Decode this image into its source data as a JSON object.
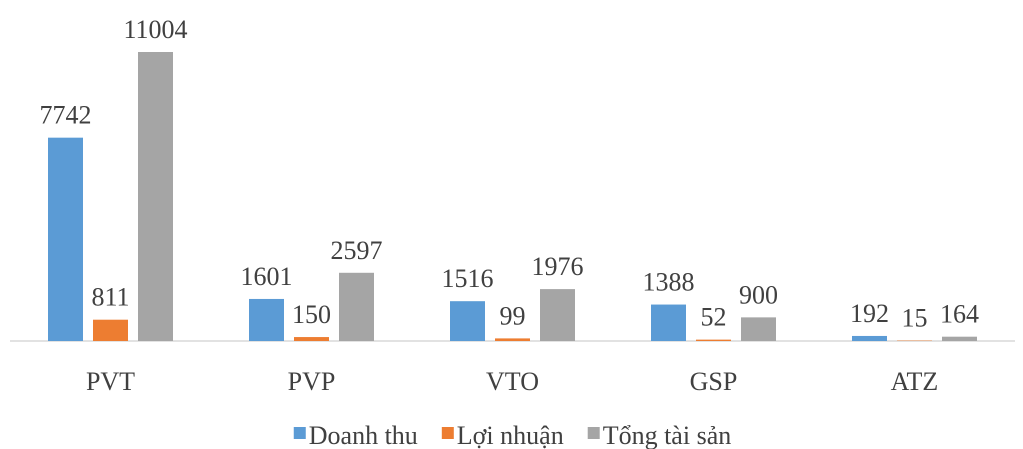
{
  "chart_data": {
    "type": "bar",
    "categories": [
      "PVT",
      "PVP",
      "VTO",
      "GSP",
      "ATZ"
    ],
    "series": [
      {
        "name": "Doanh thu",
        "color": "#5b9bd5",
        "values": [
          7742,
          1601,
          1516,
          1388,
          192
        ]
      },
      {
        "name": "Lợi nhuận",
        "color": "#ed7d31",
        "values": [
          811,
          150,
          99,
          52,
          15
        ]
      },
      {
        "name": "Tổng tài sản",
        "color": "#a5a5a5",
        "values": [
          11004,
          2597,
          1976,
          900,
          164
        ]
      }
    ],
    "legend": "bottom"
  }
}
